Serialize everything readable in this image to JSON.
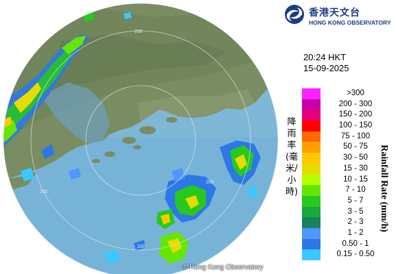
{
  "header": {
    "logo_cn": "香港天文台",
    "logo_en": "HONG KONG OBSERVATORY",
    "logo_icon": "hko-logo-icon"
  },
  "timestamp": {
    "time": "20:24 HKT",
    "date": "15-09-2025"
  },
  "legend": {
    "title_cn": "降雨率(毫米/小時)",
    "title_en": "Rainfall Rate (mm/h)",
    "levels": [
      {
        "label": ">300",
        "color": "#ff20ff"
      },
      {
        "label": "200 - 300",
        "color": "#c800aa"
      },
      {
        "label": "150 - 200",
        "color": "#e6007a"
      },
      {
        "label": "100 - 150",
        "color": "#ff0000"
      },
      {
        "label": "75 - 100",
        "color": "#ff6a00"
      },
      {
        "label": "50 - 75",
        "color": "#ffa000"
      },
      {
        "label": "30 - 50",
        "color": "#ffc800"
      },
      {
        "label": "15 - 30",
        "color": "#e6dc00"
      },
      {
        "label": "10 - 15",
        "color": "#b4ff00"
      },
      {
        "label": "7 - 10",
        "color": "#64e600"
      },
      {
        "label": "5 - 7",
        "color": "#28c81e"
      },
      {
        "label": "3 - 5",
        "color": "#14aa3c"
      },
      {
        "label": "2 - 3",
        "color": "#19825a"
      },
      {
        "label": "1 - 2",
        "color": "#5096ff"
      },
      {
        "label": "0.50 - 1",
        "color": "#2d78e6"
      },
      {
        "label": "0.15 - 0.50",
        "color": "#3cc8ff"
      }
    ]
  },
  "map": {
    "range_rings": [
      "200",
      "200",
      "200",
      "200"
    ],
    "copyright": "© Hong Kong Observatory",
    "colors": {
      "sea": "#7fb4d4",
      "land": "#7d8f63",
      "outside": "#ffffff"
    }
  }
}
